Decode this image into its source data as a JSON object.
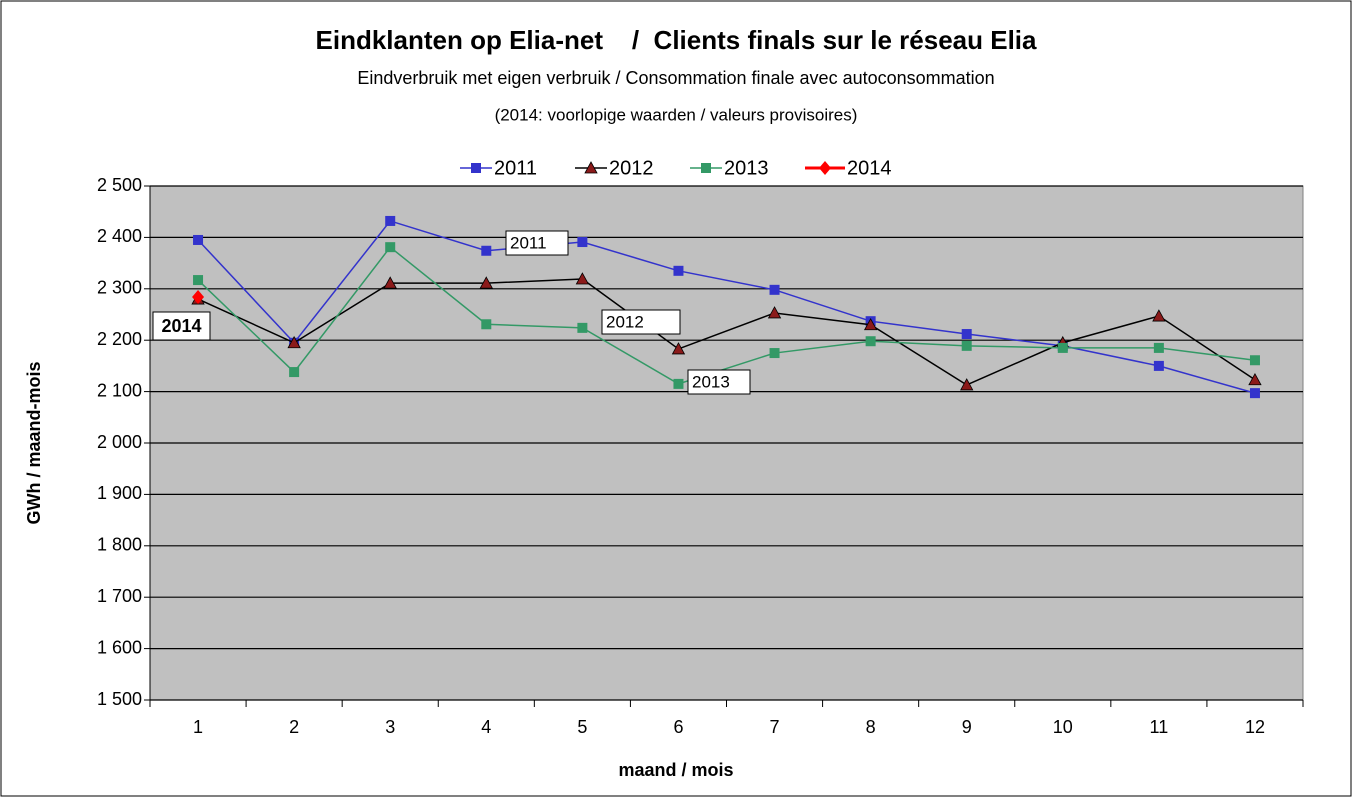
{
  "chart_data": {
    "type": "line",
    "title": "Eindklanten op Elia-net    /  Clients finals sur le réseau Elia",
    "subtitle": "Eindverbruik met eigen verbruik / Consommation finale avec autoconsommation",
    "note": "(2014: voorlopige waarden / valeurs provisoires)",
    "x_label": "maand / mois",
    "y_label": "GWh / maand-mois",
    "categories": [
      "1",
      "2",
      "3",
      "4",
      "5",
      "6",
      "7",
      "8",
      "9",
      "10",
      "11",
      "12"
    ],
    "series": [
      {
        "name": "2011",
        "color": "#3333cc",
        "marker": "square",
        "values": [
          2395,
          2195,
          2432,
          2374,
          2391,
          2335,
          2298,
          2237,
          2212,
          2189,
          2150,
          2097
        ]
      },
      {
        "name": "2012",
        "color": "#000000",
        "marker": "triangle",
        "values": [
          2280,
          2195,
          2311,
          2311,
          2319,
          2183,
          2253,
          2230,
          2113,
          2195,
          2247,
          2123
        ]
      },
      {
        "name": "2013",
        "color": "#339966",
        "marker": "square",
        "values": [
          2317,
          2138,
          2381,
          2231,
          2224,
          2115,
          2175,
          2198,
          2189,
          2185,
          2185,
          2161
        ]
      },
      {
        "name": "2014",
        "color": "#ff0000",
        "marker": "diamond",
        "values": [
          2284,
          null,
          null,
          null,
          null,
          null,
          null,
          null,
          null,
          null,
          null,
          null
        ]
      }
    ],
    "annotations": [
      "2011",
      "2012",
      "2013",
      "2014"
    ],
    "ylim": [
      1500,
      2500
    ],
    "yticks": [
      {
        "value": 1500,
        "label": "1 500"
      },
      {
        "value": 1600,
        "label": "1 600"
      },
      {
        "value": 1700,
        "label": "1 700"
      },
      {
        "value": 1800,
        "label": "1 800"
      },
      {
        "value": 1900,
        "label": "1 900"
      },
      {
        "value": 2000,
        "label": "2 000"
      },
      {
        "value": 2100,
        "label": "2 100"
      },
      {
        "value": 2200,
        "label": "2 200"
      },
      {
        "value": 2300,
        "label": "2 300"
      },
      {
        "value": 2400,
        "label": "2 400"
      },
      {
        "value": 2500,
        "label": "2 500"
      }
    ],
    "grid": true,
    "legend": "top"
  }
}
